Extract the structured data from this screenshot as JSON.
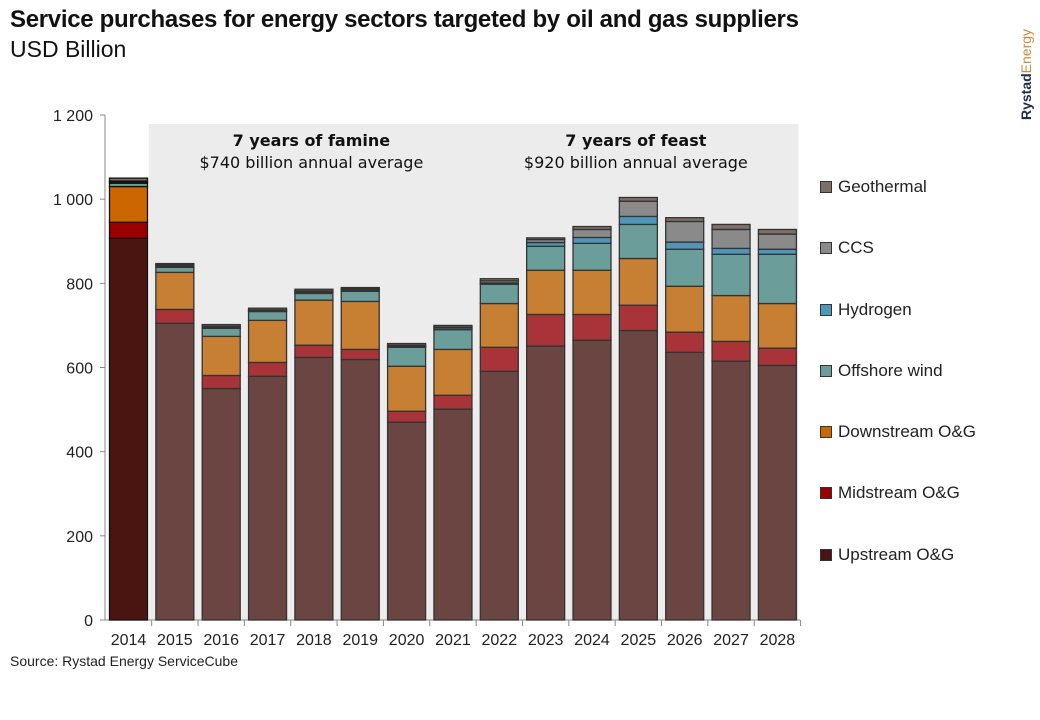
{
  "title": "Service purchases for energy sectors targeted by oil and gas suppliers",
  "subtitle": "USD Billion",
  "logo": "RystadEnergy",
  "source": "Source:  Rystad Energy ServiceCube",
  "chart_data": {
    "type": "bar",
    "stacked": true,
    "categories": [
      "2014",
      "2015",
      "2016",
      "2017",
      "2018",
      "2019",
      "2020",
      "2021",
      "2022",
      "2023",
      "2024",
      "2025",
      "2026",
      "2027",
      "2028"
    ],
    "ylim": [
      0,
      1200
    ],
    "yticks": [
      0,
      200,
      400,
      600,
      800,
      1000,
      1200
    ],
    "ytick_labels": [
      "0",
      "200",
      "400",
      "600",
      "800",
      "1 000",
      "1 200"
    ],
    "legend_position": "right",
    "series": [
      {
        "name": "Upstream O&G",
        "color": "#6a4542",
        "color_2014": "#4a1510",
        "values": [
          907,
          705,
          550,
          579,
          624,
          619,
          470,
          501,
          591,
          651,
          665,
          688,
          636,
          615,
          605
        ]
      },
      {
        "name": "Midstream O&G",
        "color": "#a8343a",
        "color_2014": "#9a0000",
        "values": [
          38,
          33,
          31,
          33,
          29,
          24,
          26,
          33,
          57,
          75,
          61,
          60,
          48,
          47,
          41
        ]
      },
      {
        "name": "Downstream O&G",
        "color": "#c67f33",
        "color_2014": "#cc6600",
        "values": [
          85,
          88,
          93,
          100,
          107,
          114,
          107,
          109,
          104,
          105,
          105,
          111,
          109,
          109,
          106
        ]
      },
      {
        "name": "Offshore wind",
        "color": "#6b9e9a",
        "values": [
          8,
          12,
          19,
          21,
          16,
          24,
          45,
          47,
          46,
          57,
          64,
          81,
          88,
          98,
          117
        ]
      },
      {
        "name": "Hydrogen",
        "color": "#4f96b7",
        "values": [
          3,
          3,
          2,
          2,
          3,
          3,
          2,
          4,
          3,
          9,
          14,
          19,
          17,
          14,
          12
        ]
      },
      {
        "name": "CCS",
        "color": "#8a8a8a",
        "values": [
          2,
          3,
          3,
          2,
          3,
          3,
          3,
          2,
          5,
          7,
          19,
          36,
          49,
          45,
          36
        ]
      },
      {
        "name": "Geothermal",
        "color": "#7d6e66",
        "values": [
          7,
          3,
          4,
          4,
          4,
          3,
          4,
          4,
          5,
          4,
          7,
          9,
          9,
          12,
          11
        ]
      }
    ],
    "annotations": [
      {
        "title": "7 years of famine",
        "text": "$740 billion annual average",
        "from": "2015",
        "to": "2021"
      },
      {
        "title": "7 years of feast",
        "text": "$920 billion annual average",
        "from": "2022",
        "to": "2028"
      }
    ]
  }
}
